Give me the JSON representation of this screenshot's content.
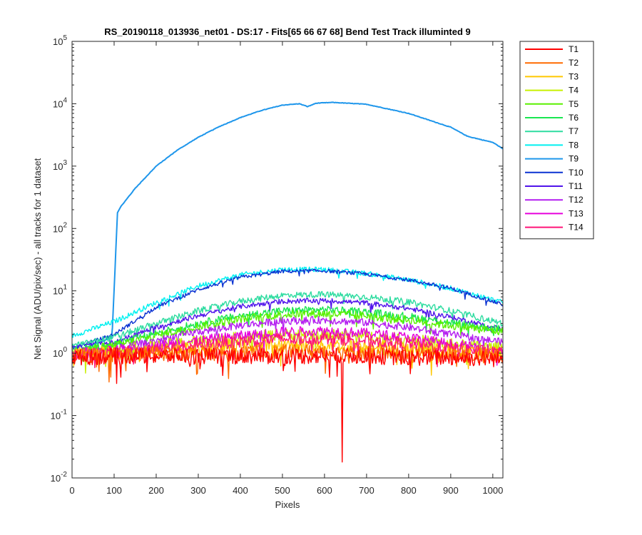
{
  "chart_data": {
    "type": "line",
    "title": "RS_20190118_013936_net01 - DS:17 - Fits[65  66  67  68]   Bend Test       Track illuminted 9",
    "xlabel": "Pixels",
    "ylabel": "Net Signal (ADU/pix/sec) - all tracks for 1 dataset",
    "xlim": [
      0,
      1024
    ],
    "ylim": [
      0.01,
      100000
    ],
    "yscale": "log",
    "grid": false,
    "legend_position": "outside-top-right",
    "x_ticks": [
      "0",
      "100",
      "200",
      "300",
      "400",
      "500",
      "600",
      "700",
      "800",
      "900",
      "1000"
    ],
    "y_ticks": [
      {
        "value": 0.01,
        "base": "10",
        "exp": "-2"
      },
      {
        "value": 0.1,
        "base": "10",
        "exp": "-1"
      },
      {
        "value": 1,
        "base": "10",
        "exp": "0"
      },
      {
        "value": 10,
        "base": "10",
        "exp": "1"
      },
      {
        "value": 100,
        "base": "10",
        "exp": "2"
      },
      {
        "value": 1000,
        "base": "10",
        "exp": "3"
      },
      {
        "value": 10000,
        "base": "10",
        "exp": "4"
      },
      {
        "value": 100000,
        "base": "10",
        "exp": "5"
      }
    ],
    "series": [
      {
        "name": "T1",
        "color": "#ff0000",
        "x": [
          0,
          100,
          200,
          300,
          400,
          500,
          600,
          640,
          642,
          644,
          700,
          800,
          900,
          1024
        ],
        "y": [
          0.85,
          0.9,
          0.9,
          0.9,
          0.9,
          0.9,
          0.9,
          0.9,
          0.018,
          0.9,
          0.9,
          0.85,
          0.85,
          0.8
        ]
      },
      {
        "name": "T2",
        "color": "#ff6a00",
        "x": [
          0,
          100,
          200,
          300,
          400,
          500,
          600,
          700,
          800,
          900,
          1024
        ],
        "y": [
          0.9,
          0.95,
          1.0,
          1.0,
          1.0,
          1.05,
          1.05,
          1.0,
          1.0,
          0.95,
          0.9
        ]
      },
      {
        "name": "T3",
        "color": "#ffc800",
        "x": [
          0,
          100,
          200,
          300,
          400,
          500,
          600,
          700,
          800,
          900,
          1024
        ],
        "y": [
          0.95,
          1.0,
          1.1,
          1.2,
          1.3,
          1.35,
          1.35,
          1.3,
          1.2,
          1.1,
          1.0
        ]
      },
      {
        "name": "T4",
        "color": "#c8f000",
        "x": [
          0,
          100,
          200,
          300,
          400,
          500,
          600,
          700,
          800,
          900,
          1024
        ],
        "y": [
          1.0,
          1.1,
          1.3,
          1.6,
          1.8,
          2.0,
          2.0,
          1.9,
          1.7,
          1.4,
          1.2
        ]
      },
      {
        "name": "T5",
        "color": "#5af000",
        "x": [
          0,
          100,
          200,
          300,
          400,
          500,
          600,
          700,
          800,
          900,
          1024
        ],
        "y": [
          1.1,
          1.3,
          1.9,
          2.7,
          3.5,
          4.2,
          4.3,
          4.0,
          3.4,
          2.8,
          2.2
        ]
      },
      {
        "name": "T6",
        "color": "#19e650",
        "x": [
          0,
          100,
          200,
          300,
          400,
          500,
          600,
          700,
          800,
          900,
          1024
        ],
        "y": [
          1.1,
          1.4,
          2.1,
          3.0,
          4.0,
          4.8,
          5.0,
          4.6,
          3.9,
          3.1,
          2.4
        ]
      },
      {
        "name": "T7",
        "color": "#2ddca0",
        "x": [
          0,
          100,
          200,
          300,
          400,
          500,
          600,
          700,
          800,
          900,
          1024
        ],
        "y": [
          1.3,
          1.8,
          3.0,
          4.8,
          6.8,
          8.5,
          8.8,
          8.0,
          6.6,
          4.8,
          3.0
        ]
      },
      {
        "name": "T8",
        "color": "#00f0f0",
        "x": [
          0,
          100,
          200,
          300,
          400,
          500,
          600,
          700,
          800,
          900,
          1024
        ],
        "y": [
          1.9,
          3.2,
          6.5,
          12,
          18,
          22,
          22,
          19,
          15,
          11,
          6.5
        ]
      },
      {
        "name": "T9",
        "color": "#1e96eb",
        "x": [
          0,
          95,
          108,
          115,
          150,
          200,
          250,
          300,
          350,
          400,
          450,
          500,
          540,
          560,
          580,
          620,
          700,
          800,
          900,
          940,
          1000,
          1024
        ],
        "y": [
          1.0,
          1.8,
          180,
          220,
          440,
          1000,
          1800,
          2900,
          4300,
          6000,
          7800,
          9500,
          10000,
          9000,
          10200,
          10500,
          9800,
          7000,
          4200,
          3000,
          2400,
          1900
        ]
      },
      {
        "name": "T10",
        "color": "#0a32d2",
        "x": [
          0,
          100,
          200,
          300,
          400,
          500,
          600,
          700,
          800,
          900,
          1024
        ],
        "y": [
          1.2,
          2.0,
          5.5,
          10.5,
          16.5,
          20.5,
          21,
          18.5,
          15,
          11,
          6.0
        ]
      },
      {
        "name": "T11",
        "color": "#5014eb",
        "x": [
          0,
          100,
          200,
          300,
          400,
          500,
          600,
          700,
          800,
          900,
          1024
        ],
        "y": [
          1.2,
          1.5,
          2.6,
          4.0,
          5.6,
          6.8,
          7.0,
          6.4,
          5.2,
          3.8,
          2.4
        ]
      },
      {
        "name": "T12",
        "color": "#b41ef0",
        "x": [
          0,
          100,
          200,
          300,
          400,
          500,
          600,
          700,
          800,
          900,
          1024
        ],
        "y": [
          1.0,
          1.15,
          1.6,
          2.2,
          2.8,
          3.3,
          3.4,
          3.1,
          2.6,
          2.0,
          1.5
        ]
      },
      {
        "name": "T13",
        "color": "#e600dc",
        "x": [
          0,
          100,
          200,
          300,
          400,
          500,
          600,
          700,
          800,
          900,
          1024
        ],
        "y": [
          1.0,
          1.1,
          1.3,
          1.6,
          1.9,
          2.2,
          2.3,
          2.1,
          1.8,
          1.4,
          1.1
        ]
      },
      {
        "name": "T14",
        "color": "#ff1478",
        "x": [
          0,
          100,
          200,
          300,
          400,
          500,
          600,
          700,
          800,
          900,
          1024
        ],
        "y": [
          0.95,
          1.0,
          1.15,
          1.35,
          1.55,
          1.7,
          1.75,
          1.6,
          1.4,
          1.2,
          1.0
        ]
      }
    ]
  }
}
